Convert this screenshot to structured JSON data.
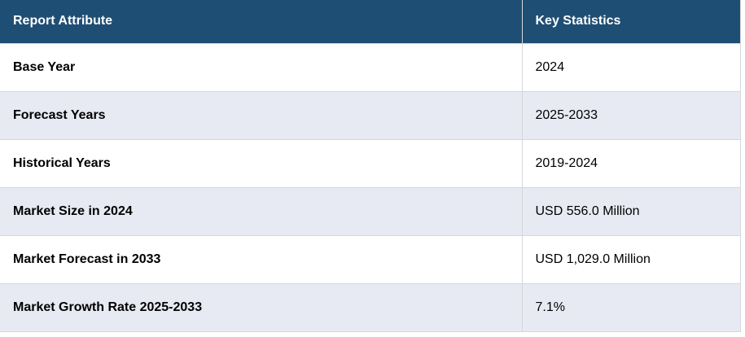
{
  "table": {
    "columns": [
      {
        "label": "Report Attribute"
      },
      {
        "label": "Key Statistics"
      }
    ],
    "rows": [
      {
        "attribute": "Base Year",
        "value": "2024"
      },
      {
        "attribute": "Forecast Years",
        "value": "2025-2033"
      },
      {
        "attribute": "Historical Years",
        "value": "2019-2024"
      },
      {
        "attribute": "Market Size in 2024",
        "value": "USD 556.0 Million"
      },
      {
        "attribute": "Market Forecast in 2033",
        "value": "USD 1,029.0 Million"
      },
      {
        "attribute": "Market Growth Rate 2025-2033",
        "value": "7.1%"
      }
    ]
  },
  "colors": {
    "header_bg": "#1f4e74",
    "header_text": "#ffffff",
    "stripe_bg": "#e8eaf3",
    "row_bg": "#ffffff",
    "border": "#d5d7dd",
    "text": "#000000"
  }
}
